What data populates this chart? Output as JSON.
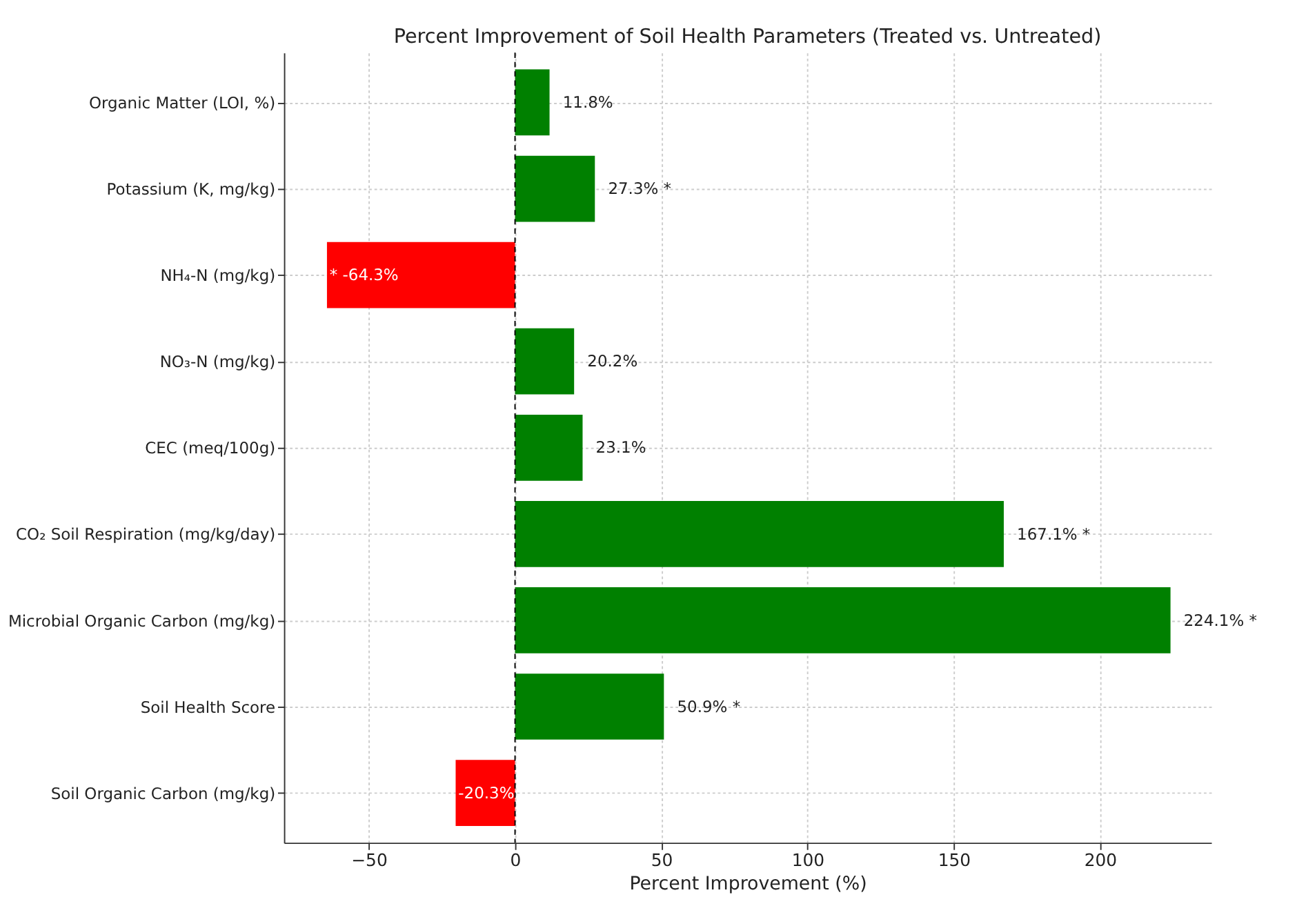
{
  "chart_data": {
    "type": "bar",
    "orientation": "horizontal",
    "title": "Percent Improvement of Soil Health Parameters (Treated vs. Untreated)",
    "xlabel": "Percent Improvement (%)",
    "categories": [
      "Organic Matter (LOI, %)",
      "Potassium (K, mg/kg)",
      "NH₄-N (mg/kg)",
      "NO₃-N (mg/kg)",
      "CEC (meq/100g)",
      "CO₂ Soil Respiration (mg/kg/day)",
      "Microbial Organic Carbon (mg/kg)",
      "Soil Health Score",
      "Soil Organic Carbon (mg/kg)"
    ],
    "values": [
      11.8,
      27.3,
      -64.3,
      20.2,
      23.1,
      167.1,
      224.1,
      50.9,
      -20.3
    ],
    "colors": [
      "#008000",
      "#008000",
      "#ff0000",
      "#008000",
      "#008000",
      "#008000",
      "#008000",
      "#008000",
      "#ff0000"
    ],
    "value_labels": [
      "11.8%",
      "27.3% *",
      "* -64.3%",
      "20.2%",
      "23.1%",
      "167.1% *",
      "224.1% *",
      "50.9% *",
      "-20.3%"
    ],
    "xlim": [
      -79,
      238
    ],
    "xticks": [
      {
        "value": -50,
        "label": "−50"
      },
      0,
      50,
      100,
      150,
      200
    ],
    "ref_lines": [
      {
        "axis": "x",
        "value": 0,
        "color": "#000000",
        "line_style": "dashed"
      }
    ],
    "grid": true
  }
}
